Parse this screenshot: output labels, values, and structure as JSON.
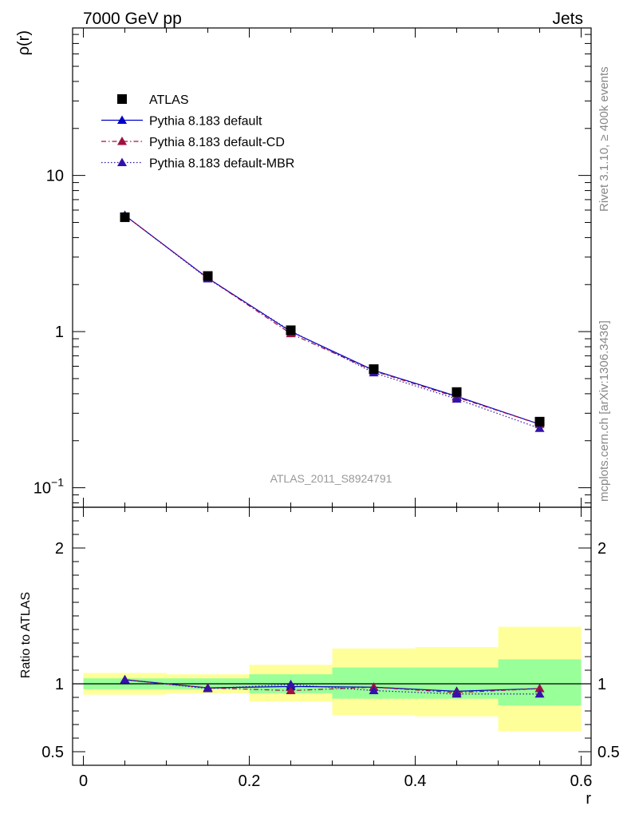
{
  "header": {
    "left_title": "7000 GeV pp",
    "right_title": "Jets"
  },
  "side_labels": {
    "rivet": "Rivet 3.1.10, ≥ 400k events",
    "mcplots": "mcplots.cern.ch [arXiv:1306.3436]"
  },
  "chart_data": [
    {
      "type": "scatter",
      "panel": "main",
      "ylabel": "ρ(r)",
      "xlabel": "r",
      "yscale": "log",
      "xlim": [
        -0.013,
        0.612
      ],
      "ylim": [
        0.075,
        88
      ],
      "analysis_label": "ATLAS_2011_S8924791",
      "y_ticks": [
        {
          "value": 0.1,
          "base": "10",
          "exp": "−1"
        },
        {
          "value": 1,
          "label": "1"
        },
        {
          "value": 10,
          "label": "10"
        }
      ],
      "x": [
        0.05,
        0.15,
        0.25,
        0.35,
        0.45,
        0.55
      ],
      "series": [
        {
          "name": "ATLAS",
          "style": "data",
          "color": "#000000",
          "values": [
            5.4,
            2.27,
            1.02,
            0.575,
            0.41,
            0.265
          ]
        },
        {
          "name": "Pythia 8.183 default",
          "style": "solid",
          "color": "#0000cc",
          "values": [
            5.55,
            2.2,
            1.0,
            0.565,
            0.385,
            0.255
          ]
        },
        {
          "name": "Pythia 8.183 default-CD",
          "style": "dashdot",
          "color": "#a01040",
          "values": [
            5.55,
            2.2,
            0.97,
            0.56,
            0.38,
            0.255
          ]
        },
        {
          "name": "Pythia 8.183 default-MBR",
          "style": "dotted",
          "color": "#3311aa",
          "values": [
            5.55,
            2.18,
            1.01,
            0.545,
            0.37,
            0.24
          ]
        }
      ]
    },
    {
      "type": "scatter",
      "panel": "ratio",
      "ylabel": "Ratio to ATLAS",
      "xlabel": "r",
      "xlim": [
        -0.013,
        0.612
      ],
      "ylim": [
        0.4,
        2.3
      ],
      "x_ticks": [
        {
          "value": 0,
          "label": "0"
        },
        {
          "value": 0.2,
          "label": "0.2"
        },
        {
          "value": 0.4,
          "label": "0.4"
        },
        {
          "value": 0.6,
          "label": "0.6"
        }
      ],
      "y_ticks": [
        {
          "value": 0.5,
          "label": "0.5"
        },
        {
          "value": 1,
          "label": "1"
        },
        {
          "value": 2,
          "label": "2"
        }
      ],
      "bins": [
        [
          0,
          0.1
        ],
        [
          0.1,
          0.2
        ],
        [
          0.2,
          0.3
        ],
        [
          0.3,
          0.4
        ],
        [
          0.4,
          0.5
        ],
        [
          0.5,
          0.6
        ]
      ],
      "band_inner": [
        [
          0.96,
          1.04
        ],
        [
          0.96,
          1.04
        ],
        [
          0.93,
          1.07
        ],
        [
          0.89,
          1.12
        ],
        [
          0.89,
          1.12
        ],
        [
          0.84,
          1.18
        ]
      ],
      "band_outer": [
        [
          0.92,
          1.08
        ],
        [
          0.93,
          1.07
        ],
        [
          0.87,
          1.14
        ],
        [
          0.77,
          1.26
        ],
        [
          0.76,
          1.27
        ],
        [
          0.65,
          1.42
        ]
      ],
      "x": [
        0.05,
        0.15,
        0.25,
        0.35,
        0.45,
        0.55
      ],
      "series": [
        {
          "name": "Pythia 8.183 default",
          "style": "solid",
          "color": "#0000cc",
          "values": [
            1.03,
            0.97,
            0.98,
            0.975,
            0.945,
            0.965
          ]
        },
        {
          "name": "Pythia 8.183 default-CD",
          "style": "dashdot",
          "color": "#a01040",
          "values": [
            1.03,
            0.97,
            0.95,
            0.975,
            0.935,
            0.965
          ]
        },
        {
          "name": "Pythia 8.183 default-MBR",
          "style": "dotted",
          "color": "#3311aa",
          "values": [
            1.03,
            0.965,
            0.995,
            0.95,
            0.925,
            0.925
          ]
        }
      ]
    }
  ]
}
